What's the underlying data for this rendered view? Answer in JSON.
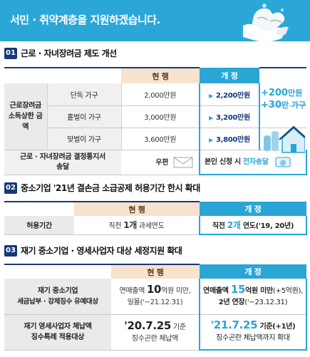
{
  "banner": {
    "title": "서민 · 취약계층을 지원하겠습니다."
  },
  "section1": {
    "num": "01",
    "title": "근로 · 자녀장려금 제도 개선",
    "col_current": "현 행",
    "col_new": "개 정",
    "group_label": "근로장려금 소득상한 금액",
    "rows": [
      {
        "type": "단독 가구",
        "current": "2,000만원",
        "new": "2,200만원"
      },
      {
        "type": "홑벌이 가구",
        "current": "3,000만원",
        "new": "3,200만원"
      },
      {
        "type": "맞벌이 가구",
        "current": "3,600만원",
        "new": "3,800만원"
      }
    ],
    "increase_1_num": "+200",
    "increase_1_unit": "만원",
    "increase_2_num": "+30",
    "increase_2_unit": "만 가구",
    "notice_label": "근로 · 자녀장려금 결정통지서 송달",
    "notice_current": "우편",
    "notice_new_prefix": "본인 신청 시 ",
    "notice_new_highlight": "전자송달"
  },
  "section2": {
    "num": "02",
    "title": "중소기업 '21년 결손금 소급공제 허용기간 한시 확대",
    "col_current": "현 행",
    "col_new": "개 정",
    "row_label": "허용기간",
    "current_prefix": "직전 ",
    "current_num": "1개",
    "current_suffix": " 과세연도",
    "new_prefix": "직전 ",
    "new_num": "2개",
    "new_suffix": " 연도('19, 20년)"
  },
  "section3": {
    "num": "03",
    "title": "재기 중소기업 · 영세사업자 대상 세정지원 확대",
    "col_current": "현 행",
    "col_new": "개 정",
    "row1": {
      "label_1": "재기 중소기업",
      "label_2": "세금납부 · 강제징수 유예대상",
      "current_1_prefix": "연매출액 ",
      "current_1_num": "10",
      "current_1_suffix": "억원 미만,",
      "current_2": "일몰('~21.12.31)",
      "new_1_prefix": "연매출액 ",
      "new_1_num": "15",
      "new_1_mid": "억원 미만",
      "new_1_suffix": "(+5억원),",
      "new_2_prefix": "2년 연장",
      "new_2_suffix": "('~23.12.31)"
    },
    "row2": {
      "label_1": "재기 영세사업자 체납액",
      "label_2": "징수특례 적용대상",
      "current_1_num": "'20.7.25",
      "current_1_suffix": " 기준",
      "current_2": "징수곤란 체납액",
      "new_1_num": "'21.7.25",
      "new_1_suffix": " 기준(+1년)",
      "new_2": "징수곤란 체납액까지 확대"
    }
  }
}
